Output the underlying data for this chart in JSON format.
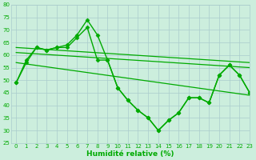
{
  "xlabel": "Humidité relative (%)",
  "bg_color": "#cceedd",
  "grid_color": "#aacccc",
  "line_color": "#00aa00",
  "ylim": [
    25,
    80
  ],
  "xlim": [
    -0.5,
    23
  ],
  "yticks": [
    25,
    30,
    35,
    40,
    45,
    50,
    55,
    60,
    65,
    70,
    75,
    80
  ],
  "xticks": [
    0,
    1,
    2,
    3,
    4,
    5,
    6,
    7,
    8,
    9,
    10,
    11,
    12,
    13,
    14,
    15,
    16,
    17,
    18,
    19,
    20,
    21,
    22,
    23
  ],
  "series": [
    {
      "x": [
        0,
        1,
        2,
        3,
        4,
        5,
        6,
        7,
        8,
        9,
        10,
        11,
        12,
        13,
        14,
        15,
        16,
        17,
        18,
        19,
        20,
        21,
        22,
        23
      ],
      "y": [
        49,
        58,
        63,
        62,
        63,
        64,
        68,
        74,
        68,
        58,
        47,
        42,
        38,
        35,
        30,
        34,
        37,
        43,
        43,
        41,
        52,
        56,
        52,
        45
      ],
      "marker": "D",
      "ms": 2.5,
      "lw": 1.0,
      "ls": "-"
    },
    {
      "x": [
        0,
        1,
        2,
        3,
        4,
        5,
        6,
        7,
        8,
        9,
        10,
        11,
        12,
        13,
        14,
        15,
        16,
        17,
        18,
        19,
        20,
        21,
        22,
        23
      ],
      "y": [
        49,
        57,
        63,
        62,
        63,
        63,
        67,
        71,
        58,
        58,
        47,
        42,
        38,
        35,
        30,
        34,
        37,
        43,
        43,
        41,
        52,
        56,
        52,
        45
      ],
      "marker": "D",
      "ms": 2.5,
      "lw": 1.0,
      "ls": "-"
    },
    {
      "x": [
        0,
        23
      ],
      "y": [
        63,
        57
      ],
      "marker": null,
      "ms": 0,
      "lw": 0.9,
      "ls": "-"
    },
    {
      "x": [
        0,
        23
      ],
      "y": [
        61,
        55
      ],
      "marker": null,
      "ms": 0,
      "lw": 0.9,
      "ls": "-"
    },
    {
      "x": [
        0,
        23
      ],
      "y": [
        57,
        44
      ],
      "marker": null,
      "ms": 0,
      "lw": 0.9,
      "ls": "-"
    }
  ]
}
